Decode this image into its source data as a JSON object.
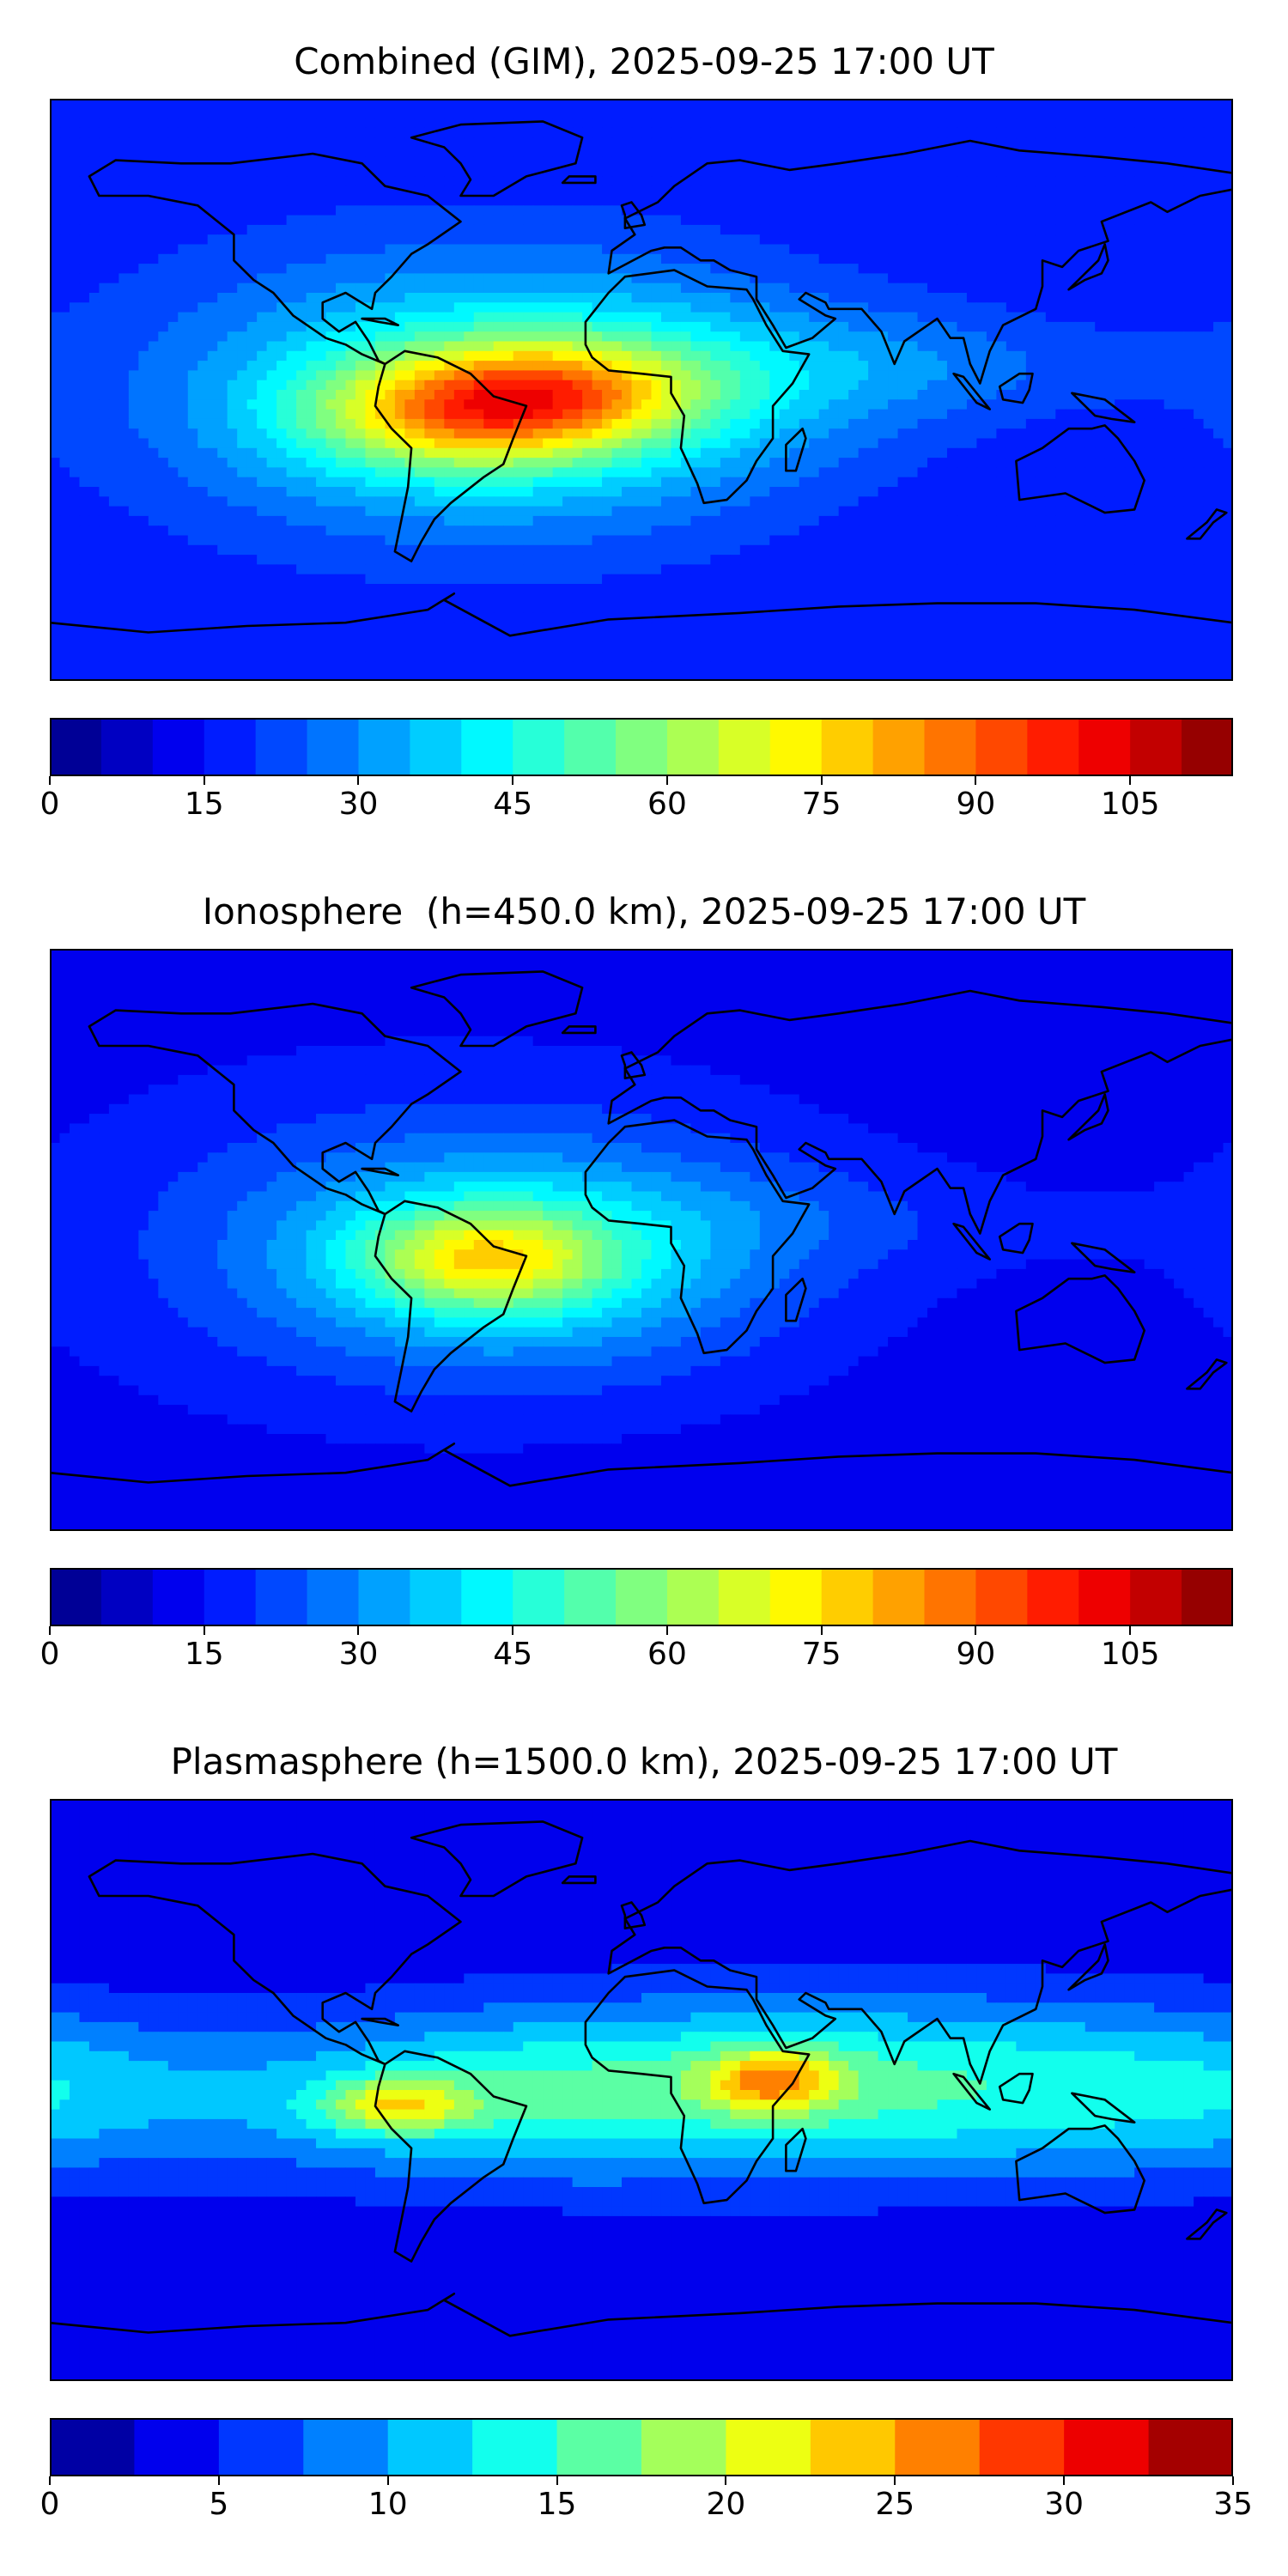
{
  "chart_data": [
    {
      "type": "heatmap",
      "title": "Combined (GIM), 2025-09-25 17:00 UT",
      "map": "world coastlines, equirectangular",
      "colormap": "jet",
      "colorbar": {
        "min": 0,
        "max": 115,
        "step": 5,
        "ticks": [
          0,
          15,
          30,
          45,
          60,
          75,
          90,
          105
        ]
      },
      "background_level": 15,
      "blobs": [
        {
          "lon": -55,
          "lat": -8,
          "value": 104,
          "sx": 34,
          "sy": 12
        },
        {
          "lon": -25,
          "lat": 0,
          "value": 92,
          "sx": 32,
          "sy": 11
        },
        {
          "lon": -40,
          "lat": -2,
          "value": 85,
          "sx": 60,
          "sy": 26
        },
        {
          "lon": -60,
          "lat": 0,
          "value": 45,
          "sx": 85,
          "sy": 38
        },
        {
          "lon": 30,
          "lat": 5,
          "value": 35,
          "sx": 50,
          "sy": 16
        },
        {
          "lon": 90,
          "lat": 8,
          "value": 35,
          "sx": 40,
          "sy": 12
        },
        {
          "lon": 140,
          "lat": 8,
          "value": 18,
          "sx": 30,
          "sy": 10
        }
      ]
    },
    {
      "type": "heatmap",
      "title": "Ionosphere  (h=450.0 km), 2025-09-25 17:00 UT",
      "map": "world coastlines, equirectangular",
      "colormap": "jet",
      "colorbar": {
        "min": 0,
        "max": 115,
        "step": 5,
        "ticks": [
          0,
          15,
          30,
          45,
          60,
          75,
          90,
          105
        ]
      },
      "background_level": 12,
      "blobs": [
        {
          "lon": -48,
          "lat": -6,
          "value": 78,
          "sx": 26,
          "sy": 11
        },
        {
          "lon": -35,
          "lat": -5,
          "value": 60,
          "sx": 50,
          "sy": 22
        },
        {
          "lon": -60,
          "lat": 0,
          "value": 38,
          "sx": 80,
          "sy": 36
        },
        {
          "lon": 40,
          "lat": 8,
          "value": 20,
          "sx": 35,
          "sy": 12
        },
        {
          "lon": 100,
          "lat": 5,
          "value": 18,
          "sx": 40,
          "sy": 12
        }
      ]
    },
    {
      "type": "heatmap",
      "title": "Plasmasphere (h=1500.0 km), 2025-09-25 17:00 UT",
      "map": "world coastlines, equirectangular",
      "colormap": "jet",
      "colorbar": {
        "min": 0,
        "max": 35,
        "step": 2.5,
        "ticks": [
          0,
          5,
          10,
          15,
          20,
          25,
          30,
          35
        ]
      },
      "background_level": 3,
      "blobs": [
        {
          "lon": 40,
          "lat": 3,
          "value": 27,
          "sx": 14,
          "sy": 7
        },
        {
          "lon": -75,
          "lat": -5,
          "value": 24,
          "sx": 16,
          "sy": 6
        },
        {
          "lon": 30,
          "lat": 2,
          "value": 20,
          "sx": 70,
          "sy": 20
        },
        {
          "lon": -60,
          "lat": -3,
          "value": 20,
          "sx": 60,
          "sy": 18
        },
        {
          "lon": 110,
          "lat": 0,
          "value": 17,
          "sx": 60,
          "sy": 20
        },
        {
          "lon": 180,
          "lat": 0,
          "value": 13,
          "sx": 40,
          "sy": 18
        }
      ]
    }
  ]
}
